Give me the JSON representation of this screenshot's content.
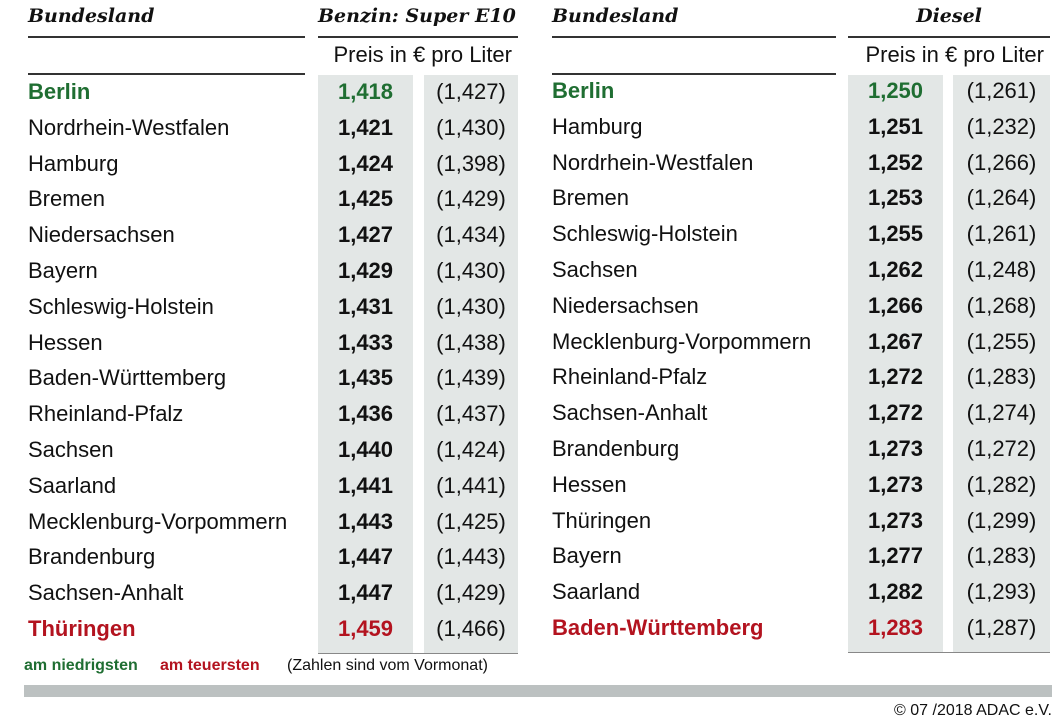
{
  "tables": [
    {
      "headers": {
        "region": "Bundesland",
        "fuel": "Benzin: Super E10",
        "unit": "Preis in € pro Liter"
      },
      "rows": [
        [
          "Berlin",
          "1,418",
          "(1,427)"
        ],
        [
          "Nordrhein-Westfalen",
          "1,421",
          "(1,430)"
        ],
        [
          "Hamburg",
          "1,424",
          "(1,398)"
        ],
        [
          "Bremen",
          "1,425",
          "(1,429)"
        ],
        [
          "Niedersachsen",
          "1,427",
          "(1,434)"
        ],
        [
          "Bayern",
          "1,429",
          "(1,430)"
        ],
        [
          "Schleswig-Holstein",
          "1,431",
          "(1,430)"
        ],
        [
          "Hessen",
          "1,433",
          "(1,438)"
        ],
        [
          "Baden-Württemberg",
          "1,435",
          "(1,439)"
        ],
        [
          "Rheinland-Pfalz",
          "1,436",
          "(1,437)"
        ],
        [
          "Sachsen",
          "1,440",
          "(1,424)"
        ],
        [
          "Saarland",
          "1,441",
          "(1,441)"
        ],
        [
          "Mecklenburg-Vorpommern",
          "1,443",
          "(1,425)"
        ],
        [
          "Brandenburg",
          "1,447",
          "(1,443)"
        ],
        [
          "Sachsen-Anhalt",
          "1,447",
          "(1,429)"
        ],
        [
          "Thüringen",
          "1,459",
          "(1,466)"
        ]
      ]
    },
    {
      "headers": {
        "region": "Bundesland",
        "fuel": "Diesel",
        "unit": "Preis in € pro Liter"
      },
      "rows": [
        [
          "Berlin",
          "1,250",
          "(1,261)"
        ],
        [
          "Hamburg",
          "1,251",
          "(1,232)"
        ],
        [
          "Nordrhein-Westfalen",
          "1,252",
          "(1,266)"
        ],
        [
          "Bremen",
          "1,253",
          "(1,264)"
        ],
        [
          "Schleswig-Holstein",
          "1,255",
          "(1,261)"
        ],
        [
          "Sachsen",
          "1,262",
          "(1,248)"
        ],
        [
          "Niedersachsen",
          "1,266",
          "(1,268)"
        ],
        [
          "Mecklenburg-Vorpommern",
          "1,267",
          "(1,255)"
        ],
        [
          "Rheinland-Pfalz",
          "1,272",
          "(1,283)"
        ],
        [
          "Sachsen-Anhalt",
          "1,272",
          "(1,274)"
        ],
        [
          "Brandenburg",
          "1,273",
          "(1,272)"
        ],
        [
          "Hessen",
          "1,273",
          "(1,282)"
        ],
        [
          "Thüringen",
          "1,273",
          "(1,299)"
        ],
        [
          "Bayern",
          "1,277",
          "(1,283)"
        ],
        [
          "Saarland",
          "1,282",
          "(1,293)"
        ],
        [
          "Baden-Württemberg",
          "1,283",
          "(1,287)"
        ]
      ]
    }
  ],
  "legend": {
    "lowest": "am niedrigsten",
    "highest": "am teuersten",
    "note": "(Zahlen sind vom Vormonat)"
  },
  "footer": "© 07 /2018 ADAC e.V."
}
